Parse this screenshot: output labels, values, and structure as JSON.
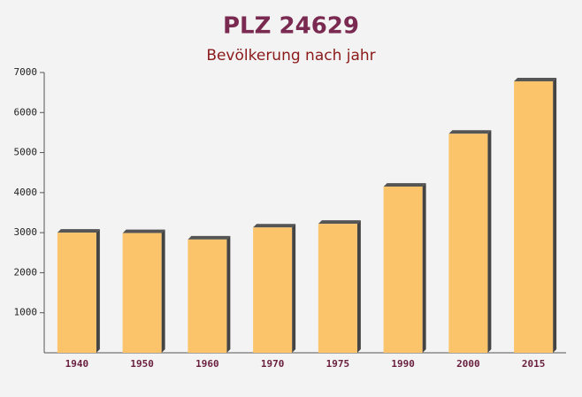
{
  "chart_data": {
    "type": "bar",
    "title": "PLZ 24629",
    "subtitle": "Bevölkerung nach jahr",
    "categories": [
      "1940",
      "1950",
      "1960",
      "1970",
      "1975",
      "1990",
      "2000",
      "2015"
    ],
    "values": [
      3000,
      2990,
      2830,
      3130,
      3220,
      4150,
      5470,
      6780
    ],
    "color": "#fbc46a",
    "ylim": [
      0,
      7000
    ],
    "yticks": [
      1000,
      2000,
      3000,
      4000,
      5000,
      6000,
      7000
    ],
    "grid": false
  }
}
